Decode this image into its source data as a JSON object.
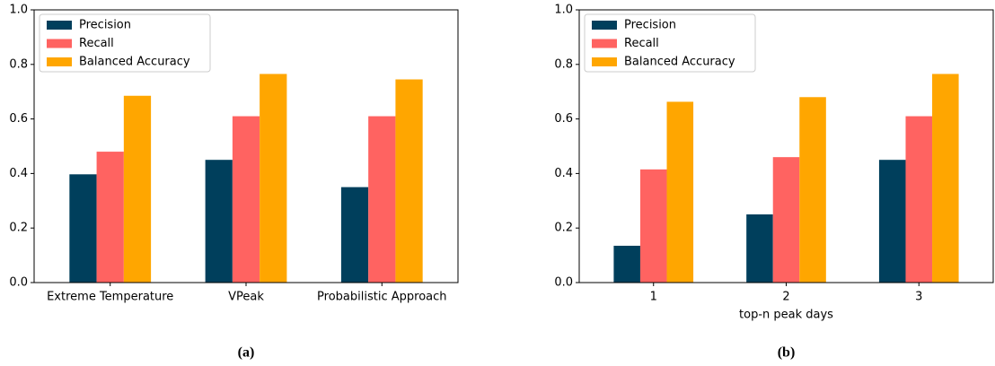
{
  "chart_data": [
    {
      "type": "bar",
      "caption": "(a)",
      "categories": [
        "Extreme Temperature",
        "VPeak",
        "Probabilistic Approach"
      ],
      "series": [
        {
          "name": "Precision",
          "color": "#003f5c",
          "values": [
            0.397,
            0.45,
            0.35
          ]
        },
        {
          "name": "Recall",
          "color": "#ff6361",
          "values": [
            0.48,
            0.61,
            0.61
          ]
        },
        {
          "name": "Balanced Accuracy",
          "color": "#ffa600",
          "values": [
            0.685,
            0.765,
            0.745
          ]
        }
      ],
      "ylim": [
        0,
        1
      ],
      "yticks": [
        {
          "value": 0,
          "label": "0.0"
        },
        0.2,
        0.4,
        0.6,
        0.8,
        {
          "value": 1,
          "label": "1.0"
        }
      ],
      "legend": "upper left"
    },
    {
      "type": "bar",
      "caption": "(b)",
      "xlabel": "top-n peak days",
      "categories": [
        "1",
        "2",
        "3"
      ],
      "series": [
        {
          "name": "Precision",
          "color": "#003f5c",
          "values": [
            0.135,
            0.25,
            0.45
          ]
        },
        {
          "name": "Recall",
          "color": "#ff6361",
          "values": [
            0.415,
            0.46,
            0.61
          ]
        },
        {
          "name": "Balanced Accuracy",
          "color": "#ffa600",
          "values": [
            0.663,
            0.68,
            0.765
          ]
        }
      ],
      "ylim": [
        0,
        1
      ],
      "yticks": [
        {
          "value": 0,
          "label": "0.0"
        },
        0.2,
        0.4,
        0.6,
        0.8,
        {
          "value": 1,
          "label": "1.0"
        }
      ],
      "legend": "upper left"
    }
  ]
}
